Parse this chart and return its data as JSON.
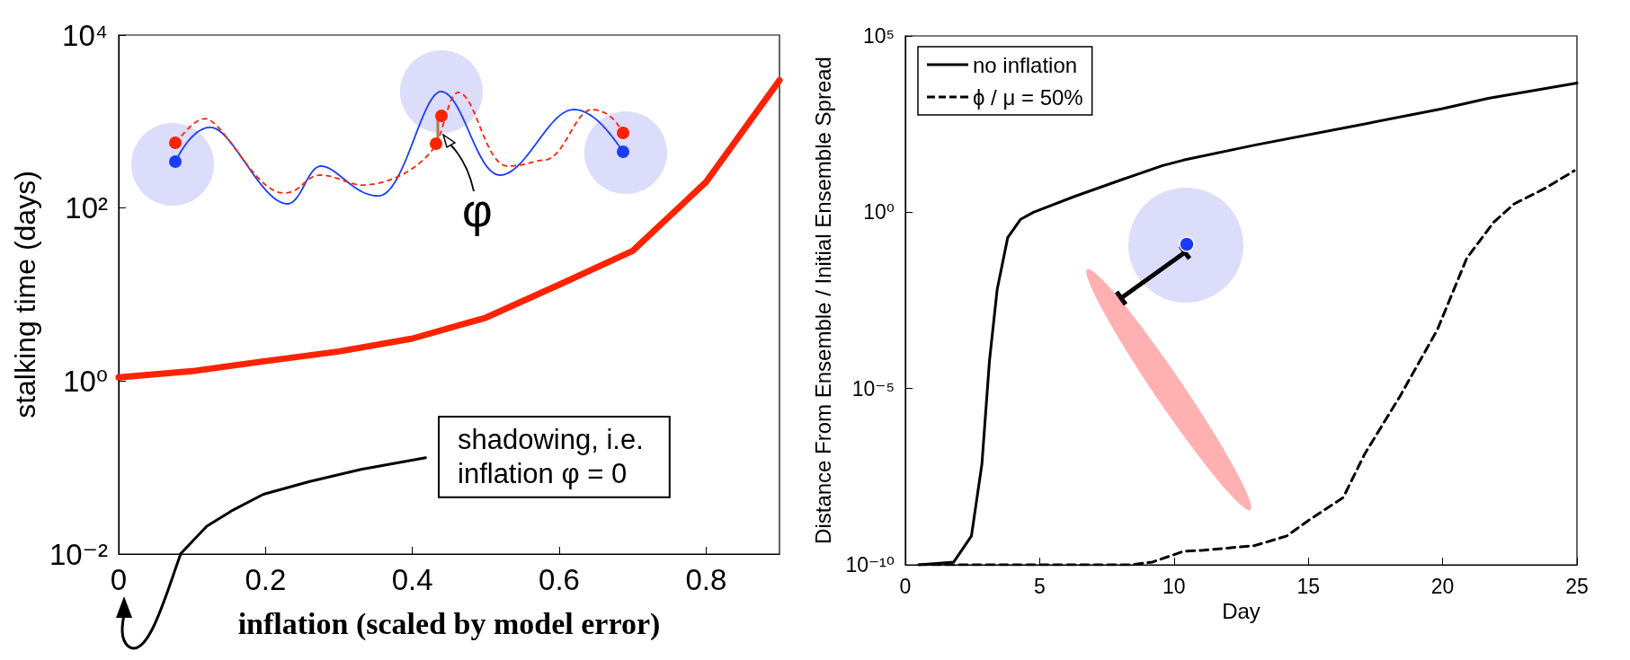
{
  "chart_data": [
    {
      "type": "line",
      "xlabel": "inflation (scaled by model error)",
      "ylabel": "stalking time (days)",
      "log": "y",
      "grid": false,
      "legend": false,
      "marker": "none",
      "xlim": [
        0,
        0.9
      ],
      "xticks": [
        0,
        0.2,
        0.4,
        0.6,
        0.8
      ],
      "ylim": [
        0.01,
        10000
      ],
      "yticks": [
        {
          "value": 0.01,
          "label": "10⁻²"
        },
        {
          "value": 1,
          "label": "10⁰"
        },
        {
          "value": 100,
          "label": "10²"
        },
        {
          "value": 10000,
          "label": "10⁴"
        }
      ],
      "series": [
        {
          "color": "#ff2200",
          "line_style": "solid",
          "x": [
            0,
            0.1,
            0.2,
            0.3,
            0.4,
            0.5,
            0.6,
            0.7,
            0.8,
            0.9
          ],
          "values": [
            1.1,
            1.3,
            1.7,
            2.2,
            3.1,
            5.4,
            13,
            32,
            200,
            3000
          ]
        },
        {
          "color": "#000000",
          "line_style": "solid",
          "x": [
            0.084,
            0.12,
            0.155,
            0.197,
            0.26,
            0.33,
            0.418
          ],
          "values": [
            0.01,
            0.021,
            0.032,
            0.049,
            0.069,
            0.095,
            0.13
          ]
        }
      ],
      "annotations": [
        "shadowing, i.e.\ninflation φ = 0",
        "φ"
      ]
    },
    {
      "type": "line",
      "xlabel": "Day",
      "ylabel": "Distance From Ensemble / Initial Ensemble Spread",
      "log": "y",
      "grid": false,
      "legend": "top left",
      "marker": "none",
      "xlim": [
        0,
        25
      ],
      "xticks": [
        0,
        5,
        10,
        15,
        20,
        25
      ],
      "ylim": [
        1e-10,
        100000
      ],
      "yticks": [
        {
          "value": 1e-10,
          "label": "10⁻¹⁰"
        },
        {
          "value": 1e-05,
          "label": "10⁻⁵"
        },
        {
          "value": 1,
          "label": "10⁰"
        },
        {
          "value": 100000,
          "label": "10⁵"
        }
      ],
      "series": [
        {
          "name": "no inflation",
          "color": "#000000",
          "line_style": "solid",
          "x": [
            0.5,
            1.8,
            2.46,
            2.85,
            3.13,
            3.42,
            3.81,
            4.29,
            4.77,
            6.3,
            8.04,
            9.58,
            10.35,
            13.04,
            16.5,
            19.96,
            21.7,
            25
          ],
          "values": [
            1e-10,
            1.2e-10,
            6.6e-10,
            7.2e-08,
            6e-05,
            0.0066,
            0.19,
            0.63,
            1,
            2.8,
            8.3,
            21,
            30,
            81,
            260,
            850,
            1700,
            4600
          ]
        },
        {
          "name": "ϕ / μ = 50%",
          "color": "#000000",
          "line_style": "dashed",
          "x": [
            0.5,
            8.4,
            9.2,
            10.35,
            11.1,
            13.0,
            14.2,
            15.0,
            16.3,
            17.1,
            18.4,
            19.8,
            20.9,
            21.9,
            22.65,
            23.8,
            24.9
          ],
          "values": [
            1e-10,
            1e-10,
            1.2e-10,
            2.4e-10,
            2.6e-10,
            3.5e-10,
            6.6e-10,
            1.8e-09,
            8.1e-09,
            1.4e-07,
            5.8e-06,
            0.00046,
            0.05,
            0.52,
            1.7,
            4.7,
            15
          ]
        }
      ]
    }
  ]
}
